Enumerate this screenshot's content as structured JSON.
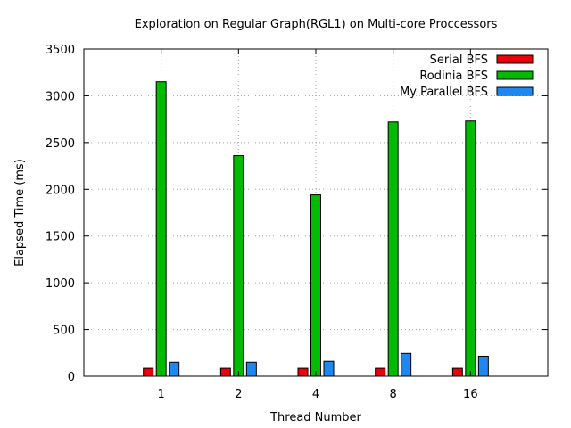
{
  "chart_data": {
    "type": "bar",
    "title": "Exploration on Regular Graph(RGL1) on Multi-core Proccessors",
    "xlabel": "Thread Number",
    "ylabel": "Elapsed Time (ms)",
    "categories": [
      "1",
      "2",
      "4",
      "8",
      "16"
    ],
    "ylim": [
      0,
      3500
    ],
    "yticks": [
      "0",
      "500",
      "1000",
      "1500",
      "2000",
      "2500",
      "3000",
      "3500"
    ],
    "grid": true,
    "legend_position": "top-right",
    "series": [
      {
        "name": "Serial BFS",
        "color": "#e8000b",
        "values": [
          85,
          85,
          85,
          85,
          85
        ]
      },
      {
        "name": "Rodinia BFS",
        "color": "#00bb00",
        "values": [
          3150,
          2360,
          1940,
          2720,
          2730
        ]
      },
      {
        "name": "My Parallel BFS",
        "color": "#1e88f0",
        "values": [
          150,
          150,
          160,
          245,
          215
        ]
      }
    ]
  }
}
